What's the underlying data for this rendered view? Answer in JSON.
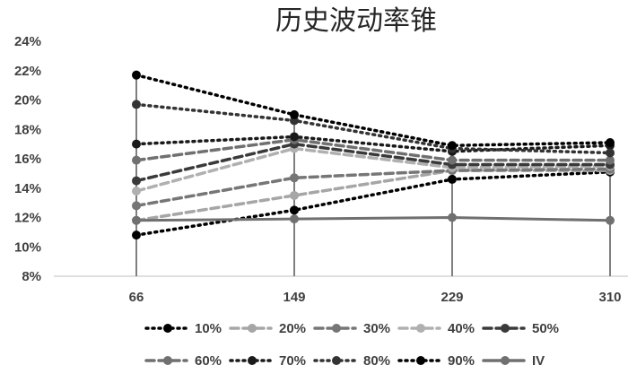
{
  "chart_data": {
    "type": "line",
    "title": "历史波动率锥",
    "xlabel": "",
    "ylabel": "",
    "x": [
      "66",
      "149",
      "229",
      "310"
    ],
    "y_ticks": [
      "8%",
      "10%",
      "12%",
      "14%",
      "16%",
      "18%",
      "20%",
      "22%",
      "24%"
    ],
    "ylim": [
      8,
      24
    ],
    "y_unit": "%",
    "grid": false,
    "legend_position": "bottom",
    "series": [
      {
        "name": "10%",
        "values": [
          10.8,
          12.5,
          14.6,
          15.1
        ],
        "color": "#000000",
        "style": "dotted"
      },
      {
        "name": "20%",
        "values": [
          11.8,
          13.5,
          15.2,
          15.2
        ],
        "color": "#a6a6a6",
        "style": "dashed"
      },
      {
        "name": "30%",
        "values": [
          12.8,
          14.7,
          15.2,
          15.3
        ],
        "color": "#767676",
        "style": "dashed"
      },
      {
        "name": "40%",
        "values": [
          13.8,
          16.7,
          15.4,
          15.5
        ],
        "color": "#b0b0b0",
        "style": "dashed"
      },
      {
        "name": "50%",
        "values": [
          14.5,
          17.0,
          15.6,
          15.6
        ],
        "color": "#3a3a3a",
        "style": "dashed"
      },
      {
        "name": "60%",
        "values": [
          15.9,
          17.3,
          15.9,
          15.9
        ],
        "color": "#707070",
        "style": "dashed"
      },
      {
        "name": "70%",
        "values": [
          17.0,
          17.5,
          16.5,
          16.9
        ],
        "color": "#1a1a1a",
        "style": "dotted"
      },
      {
        "name": "80%",
        "values": [
          19.7,
          18.6,
          16.7,
          16.4
        ],
        "color": "#333333",
        "style": "dotted"
      },
      {
        "name": "90%",
        "values": [
          21.7,
          19.0,
          16.9,
          17.1
        ],
        "color": "#000000",
        "style": "dotted"
      },
      {
        "name": "IV",
        "values": [
          11.8,
          11.9,
          12.0,
          11.8
        ],
        "color": "#707070",
        "style": "solid"
      }
    ]
  }
}
